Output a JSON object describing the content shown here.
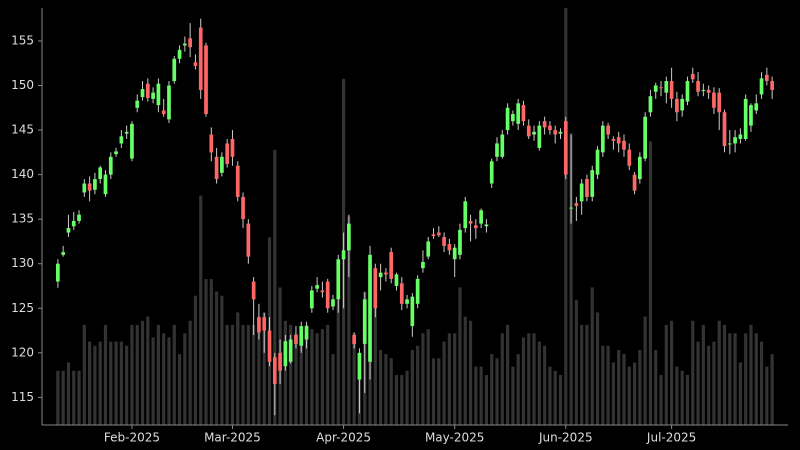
{
  "chart_data": {
    "type": "candlestick",
    "up_color": "#66ff66",
    "down_color": "#ff6666",
    "wick_color": "#cccccc",
    "volume_color": "#333333",
    "ylim": [
      111.9,
      158.7
    ],
    "yticks": [
      115,
      120,
      125,
      130,
      135,
      140,
      145,
      150,
      155
    ],
    "vlim": [
      0,
      100
    ],
    "xlim": [
      -3,
      138
    ],
    "xticks": [
      {
        "value": 14,
        "label": "Feb-2025"
      },
      {
        "value": 33,
        "label": "Mar-2025"
      },
      {
        "value": 54,
        "label": "Apr-2025"
      },
      {
        "value": 75,
        "label": "May-2025"
      },
      {
        "value": 96,
        "label": "Jun-2025"
      },
      {
        "value": 116,
        "label": "Jul-2025"
      }
    ],
    "open": [
      128,
      131,
      133.5,
      134.2,
      134.8,
      138,
      139,
      138.3,
      139.5,
      137.8,
      140,
      142.3,
      143.5,
      144.6,
      141.8,
      147.5,
      148.7,
      150.2,
      148.5,
      147.8,
      147.2,
      146.2,
      150.5,
      153,
      154.5,
      155.3,
      152.6,
      156.5,
      154.5,
      144.5,
      142,
      140.2,
      143.5,
      144,
      141,
      137.5,
      134.5,
      128,
      124,
      124,
      122.5,
      119.5,
      120,
      118.5,
      119,
      122,
      120.8,
      121.5,
      125,
      127.2,
      127,
      128,
      125.2,
      126,
      130.5,
      131.5,
      122,
      117,
      121,
      119,
      129.5,
      128.5,
      129,
      131.3,
      127.5,
      127.8,
      125.5,
      123,
      125.5,
      129.5,
      130.8,
      133.3,
      133.5,
      133,
      132.2,
      130.5,
      131,
      134,
      134.8,
      134.3,
      134.5,
      134.2,
      139,
      142,
      142,
      145,
      146,
      145.7,
      147.8,
      145.5,
      144.5,
      143,
      146,
      145.5,
      145,
      144.6,
      146,
      136.2,
      136.8,
      137,
      139.5,
      137.5,
      140,
      142.5,
      145.5,
      144,
      144.2,
      143.8,
      142.8,
      140,
      139.5,
      141.8,
      147,
      149.3,
      149.8,
      149.2,
      150.5,
      148.5,
      147.2,
      148.2,
      151.3,
      150.5,
      149.5,
      149.5,
      149.2,
      149.2,
      147,
      143.5,
      143.5,
      144,
      144,
      145.5,
      147.2,
      149,
      151.2,
      150.5
    ],
    "high": [
      130.5,
      132,
      135.5,
      135.8,
      136,
      139.5,
      139.8,
      140.2,
      141,
      140.5,
      142.5,
      143,
      145,
      145.5,
      146,
      149,
      150.5,
      150.8,
      149.8,
      150.8,
      148.5,
      150.5,
      153.3,
      154.5,
      155.5,
      157,
      153.5,
      157.5,
      154.8,
      145.3,
      143,
      142.5,
      144,
      145,
      141.5,
      138,
      135,
      128.5,
      125.5,
      124.5,
      124,
      120,
      121.5,
      122,
      122,
      123,
      123.5,
      123.5,
      127.5,
      128.5,
      128,
      128.3,
      126.5,
      131,
      133.5,
      135.5,
      122.3,
      120.5,
      126.8,
      132,
      130,
      130,
      129.5,
      131.8,
      129,
      128.5,
      126.5,
      126.7,
      128.7,
      131.5,
      133,
      134,
      134.2,
      133.5,
      132.8,
      132.2,
      134.5,
      137.5,
      135.5,
      135,
      136.2,
      135,
      141.8,
      144.2,
      145,
      148,
      147.2,
      148.5,
      148.3,
      146.2,
      145.5,
      146,
      146.5,
      146,
      145.5,
      145.2,
      146.5,
      144.5,
      137.5,
      139.5,
      140,
      141,
      143.2,
      146,
      145.8,
      144.3,
      144.8,
      144.5,
      143.5,
      140.3,
      142.5,
      147,
      149.5,
      150.3,
      150.5,
      151,
      152,
      149.3,
      149,
      151,
      152,
      151.5,
      150.2,
      150,
      149.8,
      149.7,
      147.3,
      145,
      145,
      145.2,
      149,
      148,
      149,
      151.5,
      152,
      151
    ],
    "low": [
      127.3,
      130.8,
      133,
      133.8,
      134.5,
      137.5,
      137,
      137.8,
      139,
      137.5,
      139.5,
      142,
      143,
      144,
      141.5,
      147,
      148.3,
      148.2,
      148,
      147,
      146.5,
      145.8,
      150.2,
      152.5,
      153.8,
      153.2,
      151.8,
      148.5,
      146.5,
      141.5,
      139,
      139.8,
      140.8,
      141,
      137,
      134,
      130,
      122,
      121.5,
      120,
      118.5,
      113,
      116.5,
      118,
      118.8,
      120.5,
      120,
      120.5,
      124.5,
      126.8,
      126.2,
      124.5,
      124.8,
      124.5,
      125,
      128.5,
      120.5,
      113.2,
      115.5,
      117,
      124,
      127,
      128,
      127.8,
      127,
      124.8,
      125,
      121.8,
      125,
      129,
      130.5,
      132.8,
      133,
      131.3,
      131,
      128.5,
      130.5,
      133.5,
      132.5,
      132.8,
      134,
      133.5,
      138.5,
      141.5,
      141.8,
      144.5,
      145.5,
      145,
      145.5,
      144,
      143.8,
      142.7,
      144.5,
      144.5,
      143.5,
      144,
      139.5,
      134.5,
      134.8,
      135.5,
      137,
      137,
      139.5,
      142,
      144,
      142.8,
      142.5,
      142,
      140.5,
      137.8,
      139,
      141.5,
      146.5,
      148.5,
      148.8,
      148,
      147.5,
      146,
      146.5,
      147.8,
      150.3,
      148.8,
      148.8,
      148.5,
      146.8,
      145,
      142.5,
      142.3,
      142.5,
      143.5,
      143.8,
      144.8,
      146.8,
      148.5,
      150,
      148.5
    ],
    "close": [
      130,
      131.3,
      134,
      134.8,
      135.5,
      139,
      138.2,
      139.5,
      140.8,
      140,
      142,
      142.6,
      144.3,
      144.8,
      145.7,
      148.3,
      149.6,
      148.6,
      149.2,
      150.2,
      146.8,
      150,
      153,
      154,
      154.7,
      154.3,
      152.2,
      149.5,
      146.8,
      142.5,
      139.5,
      142,
      141.2,
      142,
      137.5,
      135,
      130.8,
      126,
      122.3,
      122.5,
      119,
      116.5,
      118,
      121.3,
      121.5,
      121,
      123,
      123,
      127,
      127.6,
      126.8,
      125,
      126,
      130.5,
      131.5,
      134.5,
      121,
      120,
      126,
      131,
      125,
      129,
      128.8,
      128.3,
      128.8,
      125.5,
      126,
      126.3,
      128.3,
      130.2,
      132.5,
      133.1,
      133.2,
      132,
      131.5,
      131.8,
      133.8,
      137,
      134.5,
      134,
      136,
      134.4,
      141.5,
      143.5,
      144.5,
      147.5,
      146.8,
      148,
      146,
      144.3,
      144.8,
      145.5,
      145.3,
      145,
      144.5,
      144.8,
      140,
      136.3,
      136.5,
      139,
      137.5,
      140.5,
      142.8,
      145.5,
      144.5,
      143.8,
      143.5,
      142.8,
      141,
      138.2,
      142,
      146.5,
      148.8,
      150,
      149.7,
      150.5,
      148.5,
      147,
      148.5,
      150.5,
      150.7,
      149.3,
      149.5,
      149.2,
      147.5,
      147,
      143.2,
      143.5,
      144.2,
      144.5,
      148.5,
      147.8,
      148,
      150.8,
      150.5,
      149.5
    ],
    "volume": [
      13,
      13,
      15,
      13,
      13,
      24,
      20,
      19,
      20,
      24,
      20,
      20,
      20,
      19,
      24,
      24,
      25,
      26,
      21,
      24,
      22,
      21,
      24,
      17,
      22,
      25,
      31,
      55,
      35,
      35,
      32,
      31,
      24,
      24,
      27,
      24,
      24,
      24,
      26,
      27,
      45,
      66,
      33,
      25,
      24,
      22,
      22,
      24,
      23,
      22,
      23,
      24,
      17,
      30,
      83,
      50,
      22,
      17,
      32,
      34,
      36,
      18,
      17,
      16,
      12,
      12,
      13,
      18,
      19,
      22,
      23,
      16,
      16,
      20,
      22,
      22,
      33,
      26,
      25,
      14,
      14,
      12,
      17,
      16,
      22,
      24,
      14,
      17,
      21,
      22,
      22,
      20,
      19,
      14,
      13,
      12,
      100,
      70,
      30,
      24,
      24,
      33,
      27,
      19,
      19,
      15,
      18,
      17,
      14,
      15,
      18,
      26,
      68,
      18,
      12,
      24,
      25,
      14,
      13,
      12,
      25,
      20,
      24,
      19,
      20,
      25,
      24,
      22,
      22,
      15,
      22,
      24,
      22,
      20,
      14,
      17
    ]
  }
}
